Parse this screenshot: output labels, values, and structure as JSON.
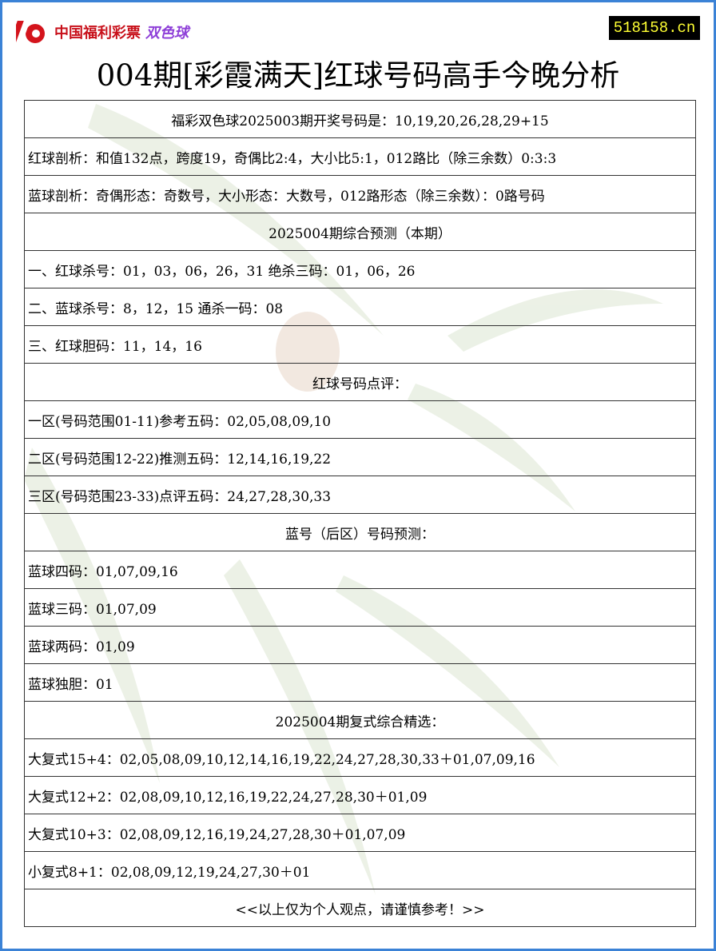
{
  "header": {
    "logo_text": "中国福利彩票",
    "logo_game": "双色球",
    "site": "518158.cn",
    "title": "004期[彩霞满天]红球号码高手今晚分析"
  },
  "rows": [
    {
      "text": "福彩双色球2025003期开奖号码是：10,19,20,26,28,29+15",
      "center": true
    },
    {
      "text": "红球剖析：和值132点，跨度19，奇偶比2:4，大小比5:1，012路比（除三余数）0:3:3",
      "center": false
    },
    {
      "text": "蓝球剖析：奇偶形态：奇数号，大小形态：大数号，012路形态（除三余数）：0路号码",
      "center": false
    },
    {
      "text": "2025004期综合预测（本期）",
      "center": true
    },
    {
      "text": "一、红球杀号：01，03，06，26，31 绝杀三码：01，06，26",
      "center": false
    },
    {
      "text": "二、蓝球杀号：8，12，15 通杀一码：08",
      "center": false
    },
    {
      "text": "三、红球胆码：11，14，16",
      "center": false
    },
    {
      "text": "红球号码点评：",
      "center": true
    },
    {
      "text": "一区(号码范围01-11)参考五码：02,05,08,09,10",
      "center": false
    },
    {
      "text": "二区(号码范围12-22)推测五码：12,14,16,19,22",
      "center": false
    },
    {
      "text": "三区(号码范围23-33)点评五码：24,27,28,30,33",
      "center": false
    },
    {
      "text": "蓝号（后区）号码预测：",
      "center": true
    },
    {
      "text": "蓝球四码：01,07,09,16",
      "center": false
    },
    {
      "text": "蓝球三码：01,07,09",
      "center": false
    },
    {
      "text": "蓝球两码：01,09",
      "center": false
    },
    {
      "text": "蓝球独胆：01",
      "center": false
    },
    {
      "text": "2025004期复式综合精选：",
      "center": true
    },
    {
      "text": "大复式15+4：02,05,08,09,10,12,14,16,19,22,24,27,28,30,33＋01,07,09,16",
      "center": false
    },
    {
      "text": "大复式12+2：02,08,09,10,12,16,19,22,24,27,28,30＋01,09",
      "center": false
    },
    {
      "text": "大复式10+3：02,08,09,12,16,19,24,27,28,30＋01,07,09",
      "center": false
    },
    {
      "text": "小复式8+1：02,08,09,12,19,24,27,30＋01",
      "center": false
    },
    {
      "text": "<<以上仅为个人观点，请谨慎参考！>>",
      "center": true
    }
  ],
  "colors": {
    "border": "#3b82d6",
    "logo_red": "#c8101a",
    "logo_purple": "#8e3fd8",
    "site_bg": "#000000",
    "site_fg": "#ffff33"
  }
}
